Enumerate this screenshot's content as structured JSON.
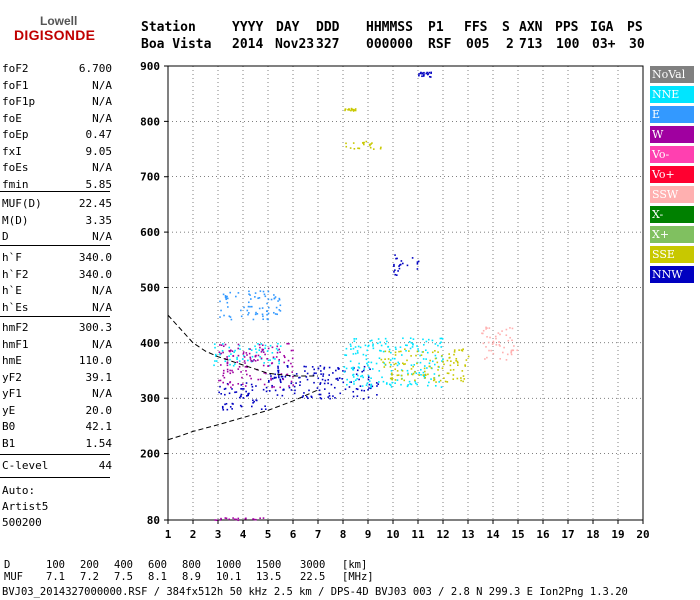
{
  "logo": {
    "line1": "Lowell",
    "line2": "DIGISONDE"
  },
  "header": {
    "labels": [
      "Station",
      "YYYY",
      "DAY",
      "DDD",
      "HHMMSS",
      "P1",
      "FFS",
      "S",
      "AXN",
      "PPS",
      "IGA",
      "PS"
    ],
    "values": [
      "Boa Vista",
      "2014",
      "Nov23",
      "327",
      "000000",
      "RSF",
      "005",
      "2",
      "713",
      "100",
      "03+",
      "30"
    ]
  },
  "params_group1": [
    {
      "name": "foF2",
      "value": "6.700"
    },
    {
      "name": "foF1",
      "value": "N/A"
    },
    {
      "name": "foF1p",
      "value": "N/A"
    },
    {
      "name": "foE",
      "value": "N/A"
    },
    {
      "name": "foEp",
      "value": "0.47"
    },
    {
      "name": "fxI",
      "value": "9.05"
    },
    {
      "name": "foEs",
      "value": "N/A"
    },
    {
      "name": "fmin",
      "value": "5.85"
    }
  ],
  "params_group2": [
    {
      "name": "MUF(D)",
      "value": "22.45"
    },
    {
      "name": "M(D)",
      "value": "3.35"
    },
    {
      "name": "D",
      "value": "N/A"
    }
  ],
  "params_group3": [
    {
      "name": "h`F",
      "value": "340.0"
    },
    {
      "name": "h`F2",
      "value": "340.0"
    },
    {
      "name": "h`E",
      "value": "N/A"
    },
    {
      "name": "h`Es",
      "value": "N/A"
    }
  ],
  "params_group4": [
    {
      "name": "hmF2",
      "value": "300.3"
    },
    {
      "name": "hmF1",
      "value": "N/A"
    },
    {
      "name": "hmE",
      "value": "110.0"
    },
    {
      "name": "yF2",
      "value": "39.1"
    },
    {
      "name": "yF1",
      "value": "N/A"
    },
    {
      "name": "yE",
      "value": "20.0"
    },
    {
      "name": "B0",
      "value": "42.1"
    },
    {
      "name": "B1",
      "value": "1.54"
    }
  ],
  "params_group5": [
    {
      "name": "C-level",
      "value": "44"
    }
  ],
  "auto": {
    "line1": "Auto:",
    "line2": "Artist5",
    "line3": "500200"
  },
  "legend": [
    {
      "label": "NoVal",
      "color": "#808080"
    },
    {
      "label": "NNE",
      "color": "#00e5ff"
    },
    {
      "label": "E",
      "color": "#3399ff"
    },
    {
      "label": "W",
      "color": "#a000a0"
    },
    {
      "label": "Vo-",
      "color": "#ff40b0"
    },
    {
      "label": "Vo+",
      "color": "#ff0030"
    },
    {
      "label": "SSW",
      "color": "#ffb0b0"
    },
    {
      "label": "X-",
      "color": "#008000"
    },
    {
      "label": "X+",
      "color": "#80c060"
    },
    {
      "label": "SSE",
      "color": "#c8c800"
    },
    {
      "label": "NNW",
      "color": "#0000c0"
    }
  ],
  "footer": {
    "d_label": "D",
    "d_values": [
      "100",
      "200",
      "400",
      "600",
      "800",
      "1000",
      "1500",
      "3000",
      "[km]"
    ],
    "muf_label": "MUF",
    "muf_values": [
      "7.1",
      "7.2",
      "7.5",
      "8.1",
      "8.9",
      "10.1",
      "13.5",
      "22.5",
      "[MHz]"
    ],
    "file_line": "BVJ03_2014327000000.RSF / 384fx512h 50 kHz 2.5 km / DPS-4D BVJ03 003 / 2.8 N 299.3 E Ion2Png 1.3.20"
  },
  "chart_data": {
    "type": "scatter",
    "title": "",
    "xlabel": "",
    "ylabel": "",
    "xlim": [
      1,
      20
    ],
    "ylim": [
      80,
      900
    ],
    "x_ticks": [
      1,
      2,
      3,
      4,
      5,
      6,
      7,
      8,
      9,
      10,
      11,
      12,
      13,
      14,
      15,
      16,
      17,
      18,
      19,
      20
    ],
    "y_ticks": [
      80,
      200,
      300,
      400,
      500,
      600,
      700,
      800,
      900
    ],
    "grid": "dotted",
    "legend_position": "right",
    "clusters": [
      {
        "direction": "NNW",
        "x": [
          3.0,
          5.0
        ],
        "y": [
          280,
          330
        ]
      },
      {
        "direction": "NNW",
        "x": [
          5.0,
          9.5
        ],
        "y": [
          300,
          360
        ]
      },
      {
        "direction": "NNE",
        "x": [
          2.8,
          5.5
        ],
        "y": [
          360,
          400
        ]
      },
      {
        "direction": "NNE",
        "x": [
          8.0,
          12.0
        ],
        "y": [
          320,
          410
        ]
      },
      {
        "direction": "E",
        "x": [
          3.0,
          5.5
        ],
        "y": [
          440,
          495
        ]
      },
      {
        "direction": "W",
        "x": [
          3.0,
          6.0
        ],
        "y": [
          320,
          400
        ]
      },
      {
        "direction": "W",
        "x": [
          2.8,
          4.8
        ],
        "y": [
          80,
          85
        ]
      },
      {
        "direction": "SSE",
        "x": [
          9.5,
          13.0
        ],
        "y": [
          330,
          390
        ]
      },
      {
        "direction": "SSW",
        "x": [
          13.5,
          15.0
        ],
        "y": [
          370,
          430
        ]
      },
      {
        "direction": "NNW",
        "x": [
          10.0,
          11.0
        ],
        "y": [
          520,
          560
        ]
      },
      {
        "direction": "NNW",
        "x": [
          11.0,
          11.5
        ],
        "y": [
          880,
          890
        ]
      },
      {
        "direction": "SSE",
        "x": [
          8.0,
          9.5
        ],
        "y": [
          750,
          765
        ]
      },
      {
        "direction": "SSE",
        "x": [
          8.0,
          8.5
        ],
        "y": [
          820,
          825
        ]
      }
    ],
    "dashed_curves": [
      {
        "name": "",
        "x": [
          1.0,
          2.0,
          2.5,
          3.0,
          4.0,
          5.0,
          6.0,
          7.0
        ],
        "y": [
          450,
          400,
          385,
          375,
          360,
          345,
          340,
          340
        ]
      },
      {
        "name": "",
        "x": [
          1.0,
          1.5,
          2.0,
          3.0,
          4.0,
          5.0,
          6.0,
          7.0
        ],
        "y": [
          225,
          232,
          240,
          252,
          265,
          278,
          295,
          315
        ]
      }
    ]
  }
}
